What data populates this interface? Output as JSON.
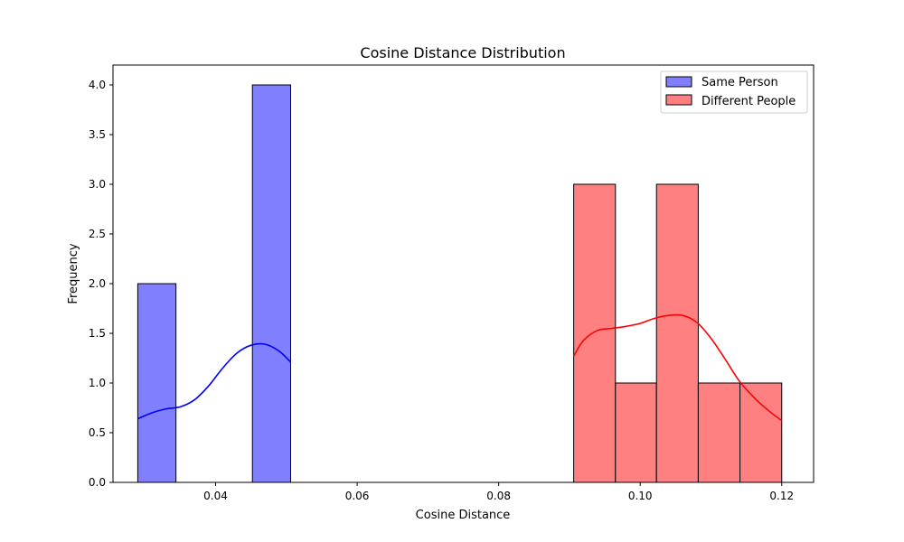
{
  "chart_data": {
    "type": "histogram",
    "title": "Cosine Distance Distribution",
    "xlabel": "Cosine Distance",
    "ylabel": "Frequency",
    "xlim": [
      0.0255,
      0.1245
    ],
    "ylim": [
      0,
      4.2
    ],
    "xticks": [
      0.04,
      0.06,
      0.08,
      0.1,
      0.12
    ],
    "xtick_labels": [
      "0.04",
      "0.06",
      "0.08",
      "0.10",
      "0.12"
    ],
    "yticks": [
      0.0,
      0.5,
      1.0,
      1.5,
      2.0,
      2.5,
      3.0,
      3.5,
      4.0
    ],
    "ytick_labels": [
      "0.0",
      "0.5",
      "1.0",
      "1.5",
      "2.0",
      "2.5",
      "3.0",
      "3.5",
      "4.0"
    ],
    "legend_position": "top-right",
    "series": [
      {
        "name": "Same Person",
        "fill": "#8080ff",
        "kde_color": "#0000ff",
        "bins": [
          {
            "x0": 0.029,
            "x1": 0.0344,
            "count": 2
          },
          {
            "x0": 0.0344,
            "x1": 0.0398,
            "count": 0
          },
          {
            "x0": 0.0398,
            "x1": 0.0452,
            "count": 0
          },
          {
            "x0": 0.0452,
            "x1": 0.0506,
            "count": 4
          }
        ],
        "kde": [
          [
            0.029,
            0.64
          ],
          [
            0.031,
            0.7
          ],
          [
            0.033,
            0.74
          ],
          [
            0.035,
            0.76
          ],
          [
            0.037,
            0.83
          ],
          [
            0.039,
            0.97
          ],
          [
            0.041,
            1.15
          ],
          [
            0.043,
            1.3
          ],
          [
            0.045,
            1.38
          ],
          [
            0.047,
            1.39
          ],
          [
            0.049,
            1.32
          ],
          [
            0.0506,
            1.21
          ]
        ]
      },
      {
        "name": "Different People",
        "fill": "#ff8080",
        "kde_color": "#ff0000",
        "bins": [
          {
            "x0": 0.0906,
            "x1": 0.0965,
            "count": 3
          },
          {
            "x0": 0.0965,
            "x1": 0.1023,
            "count": 1
          },
          {
            "x0": 0.1023,
            "x1": 0.1082,
            "count": 3
          },
          {
            "x0": 0.1082,
            "x1": 0.1141,
            "count": 1
          },
          {
            "x0": 0.1141,
            "x1": 0.12,
            "count": 1
          }
        ],
        "kde": [
          [
            0.0906,
            1.27
          ],
          [
            0.092,
            1.43
          ],
          [
            0.094,
            1.53
          ],
          [
            0.096,
            1.55
          ],
          [
            0.098,
            1.57
          ],
          [
            0.1,
            1.6
          ],
          [
            0.102,
            1.65
          ],
          [
            0.104,
            1.68
          ],
          [
            0.106,
            1.68
          ],
          [
            0.108,
            1.61
          ],
          [
            0.11,
            1.45
          ],
          [
            0.112,
            1.24
          ],
          [
            0.114,
            1.02
          ],
          [
            0.116,
            0.86
          ],
          [
            0.118,
            0.73
          ],
          [
            0.12,
            0.62
          ]
        ]
      }
    ]
  }
}
